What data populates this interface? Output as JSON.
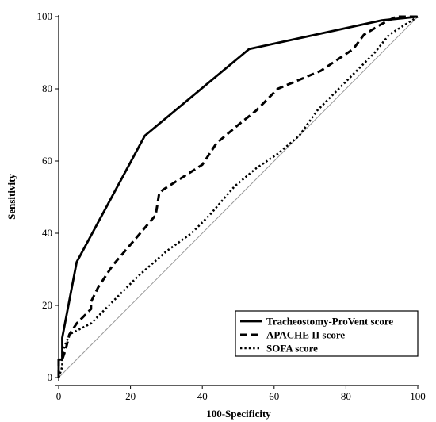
{
  "chart_data": {
    "type": "line",
    "xlabel": "100-Specificity",
    "ylabel": "Sensitivity",
    "xlim": [
      0,
      100
    ],
    "ylim": [
      0,
      100
    ],
    "xticks": [
      "0",
      "20",
      "40",
      "60",
      "80",
      "100"
    ],
    "yticks": [
      "0",
      "20",
      "40",
      "60",
      "80",
      "100"
    ],
    "legend_position": "bottom-right",
    "reference_line": {
      "x": [
        0,
        100
      ],
      "y": [
        0,
        100
      ],
      "style": "thin",
      "color": "#999999"
    },
    "series": [
      {
        "name": "Tracheostomy-ProVent score",
        "style": "solid",
        "x": [
          0,
          0,
          1,
          1,
          5,
          24,
          53,
          90,
          100
        ],
        "y": [
          0,
          5,
          5,
          11,
          32,
          67,
          91,
          99,
          100
        ]
      },
      {
        "name": "APACHE II score",
        "style": "dashed",
        "x": [
          0,
          0,
          1,
          2,
          3,
          5,
          9,
          9,
          11,
          15,
          27,
          28,
          29,
          40,
          44,
          50,
          55,
          61,
          73,
          82,
          85,
          90,
          94,
          100
        ],
        "y": [
          0,
          5,
          5,
          8,
          12,
          15,
          19,
          21,
          25,
          31,
          45,
          51,
          52,
          59,
          65,
          70,
          74,
          80,
          85,
          91,
          95,
          98,
          100,
          100
        ]
      },
      {
        "name": "SOFA score",
        "style": "dotted",
        "x": [
          0,
          1,
          1,
          3,
          9,
          14,
          22,
          30,
          37,
          42,
          49,
          55,
          61,
          67,
          72,
          78,
          84,
          88,
          92,
          100
        ],
        "y": [
          0,
          3,
          7,
          12,
          15,
          20,
          28,
          35,
          40,
          45,
          53,
          58,
          62,
          67,
          74,
          80,
          86,
          90,
          95,
          100
        ]
      }
    ]
  }
}
